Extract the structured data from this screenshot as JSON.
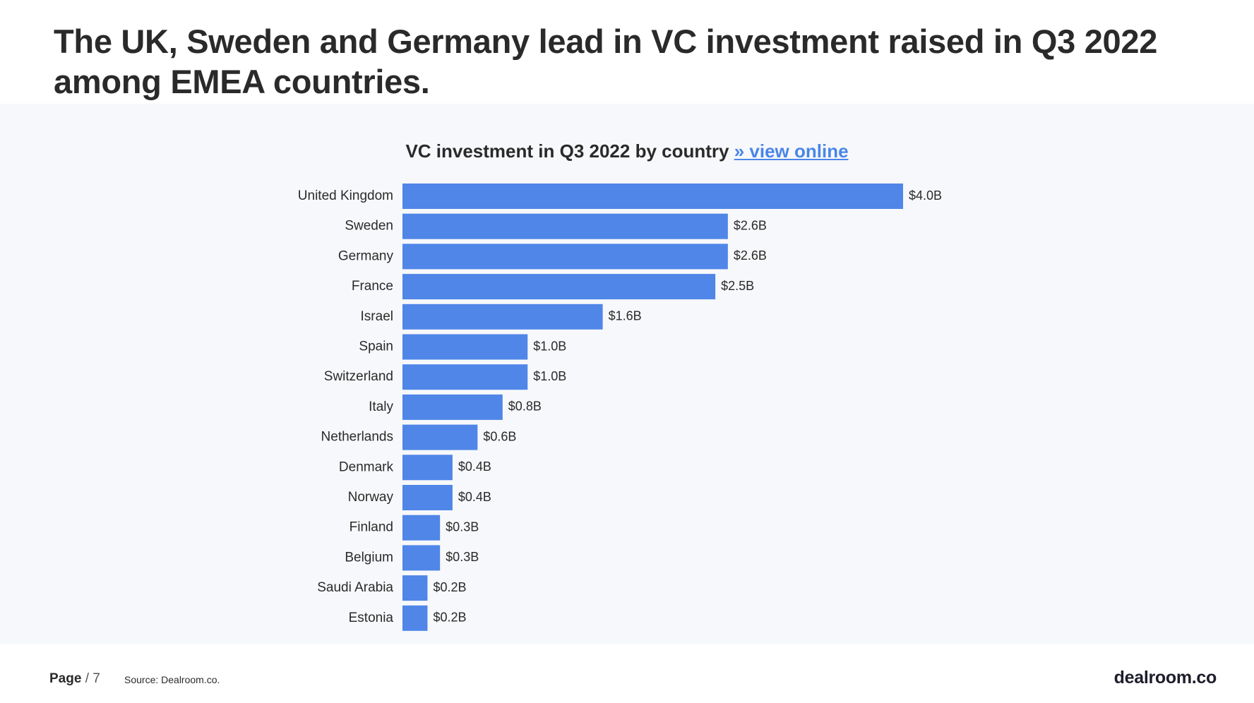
{
  "headline": "The UK, Sweden and Germany lead in VC investment raised in Q3 2022 among EMEA countries.",
  "chart_title": {
    "text": "VC investment in Q3 2022 by country",
    "link": "» view online"
  },
  "chart_data": {
    "type": "bar",
    "orientation": "horizontal",
    "title": "VC investment in Q3 2022 by country",
    "xlabel": "",
    "ylabel": "",
    "unit": "$B",
    "categories": [
      "United Kingdom",
      "Sweden",
      "Germany",
      "France",
      "Israel",
      "Spain",
      "Switzerland",
      "Italy",
      "Netherlands",
      "Denmark",
      "Norway",
      "Finland",
      "Belgium",
      "Saudi Arabia",
      "Estonia"
    ],
    "values": [
      4.0,
      2.6,
      2.6,
      2.5,
      1.6,
      1.0,
      1.0,
      0.8,
      0.6,
      0.4,
      0.4,
      0.3,
      0.3,
      0.2,
      0.2
    ],
    "labels": [
      "$4.0B",
      "$2.6B",
      "$2.6B",
      "$2.5B",
      "$1.6B",
      "$1.0B",
      "$1.0B",
      "$0.8B",
      "$0.6B",
      "$0.4B",
      "$0.4B",
      "$0.3B",
      "$0.3B",
      "$0.2B",
      "$0.2B"
    ],
    "xlim": [
      0,
      4.0
    ],
    "grid": false,
    "color": "#4f86e8"
  },
  "footer": {
    "page_label": "Page",
    "page_separator": "/",
    "page_number": "7",
    "source": "Source: Dealroom.co.",
    "logo": "dealroom.co"
  }
}
